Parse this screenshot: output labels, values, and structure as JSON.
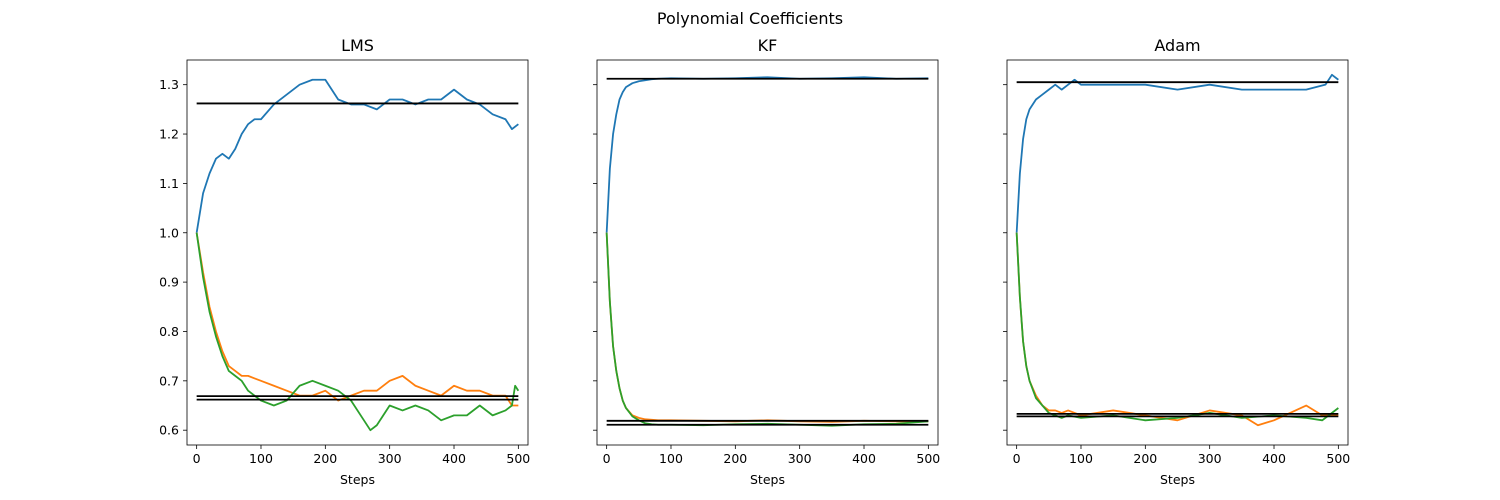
{
  "figure": {
    "suptitle": "Polynomial Coefficients"
  },
  "colors": {
    "series": [
      "#1f77b4",
      "#ff7f0e",
      "#2ca02c"
    ],
    "reference": "#000000"
  },
  "chart_data": [
    {
      "type": "line",
      "title": "LMS",
      "xlabel": "Steps",
      "ylabel": "",
      "xlim": [
        -15,
        515
      ],
      "ylim": [
        0.57,
        1.35
      ],
      "xticks": [
        0,
        100,
        200,
        300,
        400,
        500
      ],
      "yticks": [
        0.6,
        0.7,
        0.8,
        0.9,
        1.0,
        1.1,
        1.2,
        1.3
      ],
      "ytick_labels_visible": true,
      "reference_lines": [
        1.262,
        0.669,
        0.662
      ],
      "series": [
        {
          "color": "#1f77b4",
          "x": [
            0,
            10,
            20,
            30,
            40,
            50,
            60,
            70,
            80,
            90,
            100,
            120,
            140,
            160,
            180,
            200,
            220,
            240,
            260,
            280,
            300,
            320,
            340,
            360,
            380,
            400,
            420,
            440,
            460,
            480,
            490,
            500
          ],
          "y": [
            1.0,
            1.08,
            1.12,
            1.15,
            1.16,
            1.15,
            1.17,
            1.2,
            1.22,
            1.23,
            1.23,
            1.26,
            1.28,
            1.3,
            1.31,
            1.31,
            1.27,
            1.26,
            1.26,
            1.25,
            1.27,
            1.27,
            1.26,
            1.27,
            1.27,
            1.29,
            1.27,
            1.26,
            1.24,
            1.23,
            1.21,
            1.22
          ]
        },
        {
          "color": "#ff7f0e",
          "x": [
            0,
            10,
            20,
            30,
            40,
            50,
            60,
            70,
            80,
            100,
            120,
            140,
            160,
            180,
            200,
            220,
            240,
            260,
            280,
            300,
            320,
            340,
            360,
            380,
            400,
            420,
            440,
            460,
            480,
            490,
            500
          ],
          "y": [
            1.0,
            0.92,
            0.85,
            0.8,
            0.76,
            0.73,
            0.72,
            0.71,
            0.71,
            0.7,
            0.69,
            0.68,
            0.67,
            0.67,
            0.68,
            0.66,
            0.67,
            0.68,
            0.68,
            0.7,
            0.71,
            0.69,
            0.68,
            0.67,
            0.69,
            0.68,
            0.68,
            0.67,
            0.67,
            0.65,
            0.65
          ]
        },
        {
          "color": "#2ca02c",
          "x": [
            0,
            10,
            20,
            30,
            40,
            50,
            60,
            70,
            80,
            100,
            120,
            140,
            160,
            180,
            200,
            220,
            240,
            260,
            270,
            280,
            300,
            320,
            340,
            360,
            380,
            400,
            420,
            440,
            460,
            480,
            490,
            495,
            500
          ],
          "y": [
            1.0,
            0.91,
            0.84,
            0.79,
            0.75,
            0.72,
            0.71,
            0.7,
            0.68,
            0.66,
            0.65,
            0.66,
            0.69,
            0.7,
            0.69,
            0.68,
            0.66,
            0.62,
            0.6,
            0.61,
            0.65,
            0.64,
            0.65,
            0.64,
            0.62,
            0.63,
            0.63,
            0.65,
            0.63,
            0.64,
            0.65,
            0.69,
            0.68
          ]
        }
      ]
    },
    {
      "type": "line",
      "title": "KF",
      "xlabel": "Steps",
      "ylabel": "",
      "xlim": [
        -15,
        515
      ],
      "ylim": [
        0.57,
        1.35
      ],
      "xticks": [
        0,
        100,
        200,
        300,
        400,
        500
      ],
      "yticks": [
        0.6,
        0.7,
        0.8,
        0.9,
        1.0,
        1.1,
        1.2,
        1.3
      ],
      "ytick_labels_visible": false,
      "reference_lines": [
        1.312,
        0.619,
        0.611
      ],
      "series": [
        {
          "color": "#1f77b4",
          "x": [
            0,
            5,
            10,
            15,
            20,
            25,
            30,
            40,
            50,
            60,
            70,
            80,
            100,
            150,
            200,
            250,
            300,
            350,
            400,
            450,
            500
          ],
          "y": [
            1.0,
            1.13,
            1.2,
            1.24,
            1.27,
            1.285,
            1.295,
            1.303,
            1.307,
            1.309,
            1.311,
            1.312,
            1.313,
            1.312,
            1.313,
            1.315,
            1.312,
            1.313,
            1.315,
            1.312,
            1.313
          ]
        },
        {
          "color": "#ff7f0e",
          "x": [
            0,
            5,
            10,
            15,
            20,
            25,
            30,
            40,
            50,
            60,
            70,
            80,
            100,
            150,
            200,
            250,
            300,
            350,
            400,
            450,
            500
          ],
          "y": [
            1.0,
            0.86,
            0.77,
            0.72,
            0.685,
            0.66,
            0.645,
            0.63,
            0.625,
            0.622,
            0.621,
            0.62,
            0.62,
            0.619,
            0.618,
            0.62,
            0.618,
            0.617,
            0.619,
            0.618,
            0.618
          ]
        },
        {
          "color": "#2ca02c",
          "x": [
            0,
            5,
            10,
            15,
            20,
            25,
            30,
            40,
            50,
            60,
            70,
            80,
            100,
            150,
            200,
            250,
            300,
            350,
            400,
            450,
            500
          ],
          "y": [
            1.0,
            0.86,
            0.77,
            0.72,
            0.685,
            0.66,
            0.645,
            0.628,
            0.62,
            0.614,
            0.612,
            0.611,
            0.611,
            0.61,
            0.612,
            0.613,
            0.611,
            0.609,
            0.612,
            0.613,
            0.618
          ]
        }
      ]
    },
    {
      "type": "line",
      "title": "Adam",
      "xlabel": "Steps",
      "ylabel": "",
      "xlim": [
        -15,
        515
      ],
      "ylim": [
        0.57,
        1.35
      ],
      "xticks": [
        0,
        100,
        200,
        300,
        400,
        500
      ],
      "yticks": [
        0.6,
        0.7,
        0.8,
        0.9,
        1.0,
        1.1,
        1.2,
        1.3
      ],
      "ytick_labels_visible": false,
      "reference_lines": [
        1.305,
        0.633,
        0.628
      ],
      "series": [
        {
          "color": "#1f77b4",
          "x": [
            0,
            5,
            10,
            15,
            20,
            30,
            40,
            50,
            60,
            70,
            80,
            90,
            100,
            150,
            200,
            250,
            300,
            350,
            400,
            450,
            480,
            490,
            500
          ],
          "y": [
            1.0,
            1.12,
            1.19,
            1.23,
            1.25,
            1.27,
            1.28,
            1.29,
            1.3,
            1.29,
            1.3,
            1.31,
            1.3,
            1.3,
            1.3,
            1.29,
            1.3,
            1.29,
            1.29,
            1.29,
            1.3,
            1.32,
            1.31
          ]
        },
        {
          "color": "#ff7f0e",
          "x": [
            0,
            5,
            10,
            15,
            20,
            30,
            40,
            50,
            60,
            70,
            80,
            100,
            150,
            200,
            250,
            300,
            350,
            375,
            400,
            450,
            475,
            500
          ],
          "y": [
            1.0,
            0.87,
            0.78,
            0.73,
            0.7,
            0.67,
            0.65,
            0.64,
            0.64,
            0.635,
            0.64,
            0.63,
            0.64,
            0.63,
            0.62,
            0.64,
            0.63,
            0.61,
            0.62,
            0.65,
            0.63,
            0.63
          ]
        },
        {
          "color": "#2ca02c",
          "x": [
            0,
            5,
            10,
            15,
            20,
            30,
            40,
            50,
            60,
            70,
            80,
            100,
            150,
            200,
            250,
            300,
            350,
            400,
            450,
            475,
            500
          ],
          "y": [
            1.0,
            0.87,
            0.78,
            0.73,
            0.7,
            0.665,
            0.65,
            0.635,
            0.63,
            0.625,
            0.63,
            0.625,
            0.63,
            0.62,
            0.625,
            0.635,
            0.625,
            0.63,
            0.625,
            0.62,
            0.645
          ]
        }
      ]
    }
  ]
}
